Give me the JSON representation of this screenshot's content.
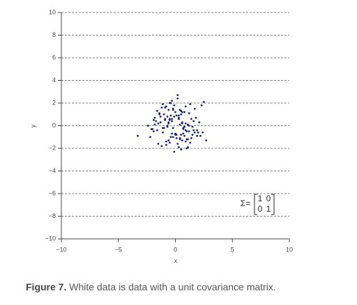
{
  "chart_data": {
    "type": "scatter",
    "x_label": "x",
    "y_label": "y",
    "color": "#1b1b6b",
    "xlim": [
      -10,
      10
    ],
    "ylim": [
      -10,
      10
    ],
    "xticks": [
      {
        "value": -10,
        "label": "−10"
      },
      {
        "value": -5,
        "label": "−5"
      },
      0,
      5,
      10
    ],
    "yticks": [
      {
        "value": -10,
        "label": "−10"
      },
      {
        "value": -8,
        "label": "−8"
      },
      {
        "value": -6,
        "label": "−6"
      },
      {
        "value": -4,
        "label": "−4"
      },
      {
        "value": -2,
        "label": "−2"
      },
      0,
      2,
      4,
      6,
      8,
      10
    ],
    "grid": true,
    "annotation": {
      "text": "Σ=",
      "matrix": [
        [
          1,
          0
        ],
        [
          0,
          1
        ]
      ]
    },
    "x": [
      -0.3,
      0.5,
      1.2,
      -1.1,
      0.1,
      -0.6,
      0.9,
      1.7,
      -1.8,
      0.3,
      -0.2,
      0.7,
      -0.9,
      1.4,
      -0.4,
      0.0,
      2.1,
      -1.5,
      0.6,
      -0.7,
      1.0,
      -0.1,
      0.4,
      -1.3,
      0.8,
      -0.5,
      1.9,
      -2.2,
      0.2,
      -0.8,
      1.1,
      -1.0,
      0.5,
      -0.3,
      1.6,
      -1.6,
      0.0,
      0.9,
      -0.6,
      1.3,
      -1.9,
      0.7,
      -0.2,
      2.4,
      -1.2,
      0.3,
      -0.9,
      1.5,
      -0.4,
      0.6,
      -1.4,
      1.8,
      -0.1,
      0.2,
      -2.0,
      1.0,
      -0.7,
      0.4,
      -1.1,
      2.2,
      -0.5,
      0.8,
      -1.7,
      1.2,
      0.1,
      -0.3,
      1.4,
      -0.8,
      0.5,
      -2.4,
      0.9,
      -0.2,
      1.7,
      -1.3,
      0.3,
      -0.6,
      2.0,
      -1.0,
      0.6,
      -0.4,
      1.1,
      -1.5,
      0.0,
      0.7,
      -0.9,
      1.3,
      -2.1,
      0.4,
      -0.1,
      1.9,
      -1.2,
      0.2,
      -0.7,
      1.6,
      -0.5,
      0.8,
      -1.8,
      1.0,
      -0.3,
      0.5,
      -3.3,
      2.7,
      2.5,
      -1.6,
      0.1,
      1.2,
      -0.8,
      0.3,
      -1.1,
      2.3,
      -0.6,
      0.9,
      -1.4,
      0.6,
      -0.2,
      1.5,
      -1.9,
      0.4,
      -0.5,
      1.1
    ],
    "y": [
      0.4,
      -0.8,
      1.1,
      -0.2,
      0.9,
      -1.3,
      0.2,
      -0.6,
      0.7,
      -1.9,
      1.5,
      -0.3,
      0.6,
      -1.1,
      2.0,
      -0.7,
      0.3,
      -1.6,
      1.2,
      0.0,
      -0.5,
      1.8,
      -1.2,
      0.8,
      -0.1,
      0.5,
      -0.9,
      -1.0,
      2.4,
      -1.4,
      0.1,
      1.0,
      -2.1,
      0.6,
      -0.4,
      1.3,
      -0.8,
      1.7,
      0.2,
      -1.5,
      0.5,
      -0.2,
      1.4,
      -0.6,
      -1.8,
      0.9,
      1.6,
      -0.1,
      -1.0,
      0.3,
      1.1,
      0.7,
      -2.3,
      2.7,
      -0.3,
      -1.2,
      0.8,
      0.1,
      1.9,
      -0.9,
      -1.5,
      1.2,
      0.4,
      -0.5,
      -0.8,
      2.2,
      0.6,
      -1.7,
      1.0,
      0.0,
      -0.4,
      -1.0,
      1.5,
      0.3,
      0.7,
      1.4,
      -0.6,
      -0.2,
      -1.3,
      0.9,
      -1.9,
      0.2,
      1.2,
      -0.7,
      0.5,
      1.9,
      -0.3,
      -1.1,
      0.8,
      -0.4,
      1.6,
      -1.6,
      -0.1,
      0.4,
      2.0,
      -0.9,
      0.1,
      -2.0,
      -0.7,
      1.3,
      -0.9,
      -1.3,
      2.1,
      -0.4,
      -1.1,
      0.0,
      1.7,
      0.6,
      -0.6,
      1.8,
      0.3,
      -1.4,
      1.0,
      0.2,
      -0.2,
      -0.8,
      -0.5,
      1.4,
      0.6,
      -1.2
    ]
  },
  "caption": {
    "label": "Figure 7.",
    "text": "White data is data with a unit covariance matrix."
  }
}
